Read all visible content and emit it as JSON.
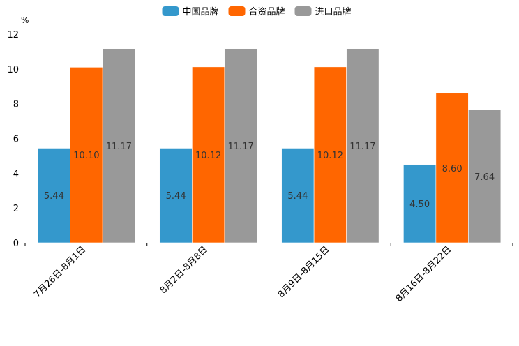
{
  "chart_data": {
    "type": "bar",
    "unit_label": "%",
    "categories": [
      "7月26日-8月1日",
      "8月2日-8月8日",
      "8月9日-8月15日",
      "8月16日-8月22日"
    ],
    "series": [
      {
        "name": "中国品牌",
        "color": "#3498cc",
        "values": [
          5.44,
          5.44,
          5.44,
          4.5
        ],
        "labels": [
          "5.44",
          "5.44",
          "5.44",
          "4.50"
        ]
      },
      {
        "name": "合资品牌",
        "color": "#ff6600",
        "values": [
          10.1,
          10.12,
          10.12,
          8.6
        ],
        "labels": [
          "10.10",
          "10.12",
          "10.12",
          "8.60"
        ]
      },
      {
        "name": "进口品牌",
        "color": "#999999",
        "values": [
          11.17,
          11.17,
          11.17,
          7.64
        ],
        "labels": [
          "11.17",
          "11.17",
          "11.17",
          "7.64"
        ]
      }
    ],
    "yticks": [
      "0",
      "2",
      "4",
      "6",
      "8",
      "10",
      "12"
    ],
    "ylim": [
      0,
      12
    ],
    "legend_position": "top-center"
  }
}
